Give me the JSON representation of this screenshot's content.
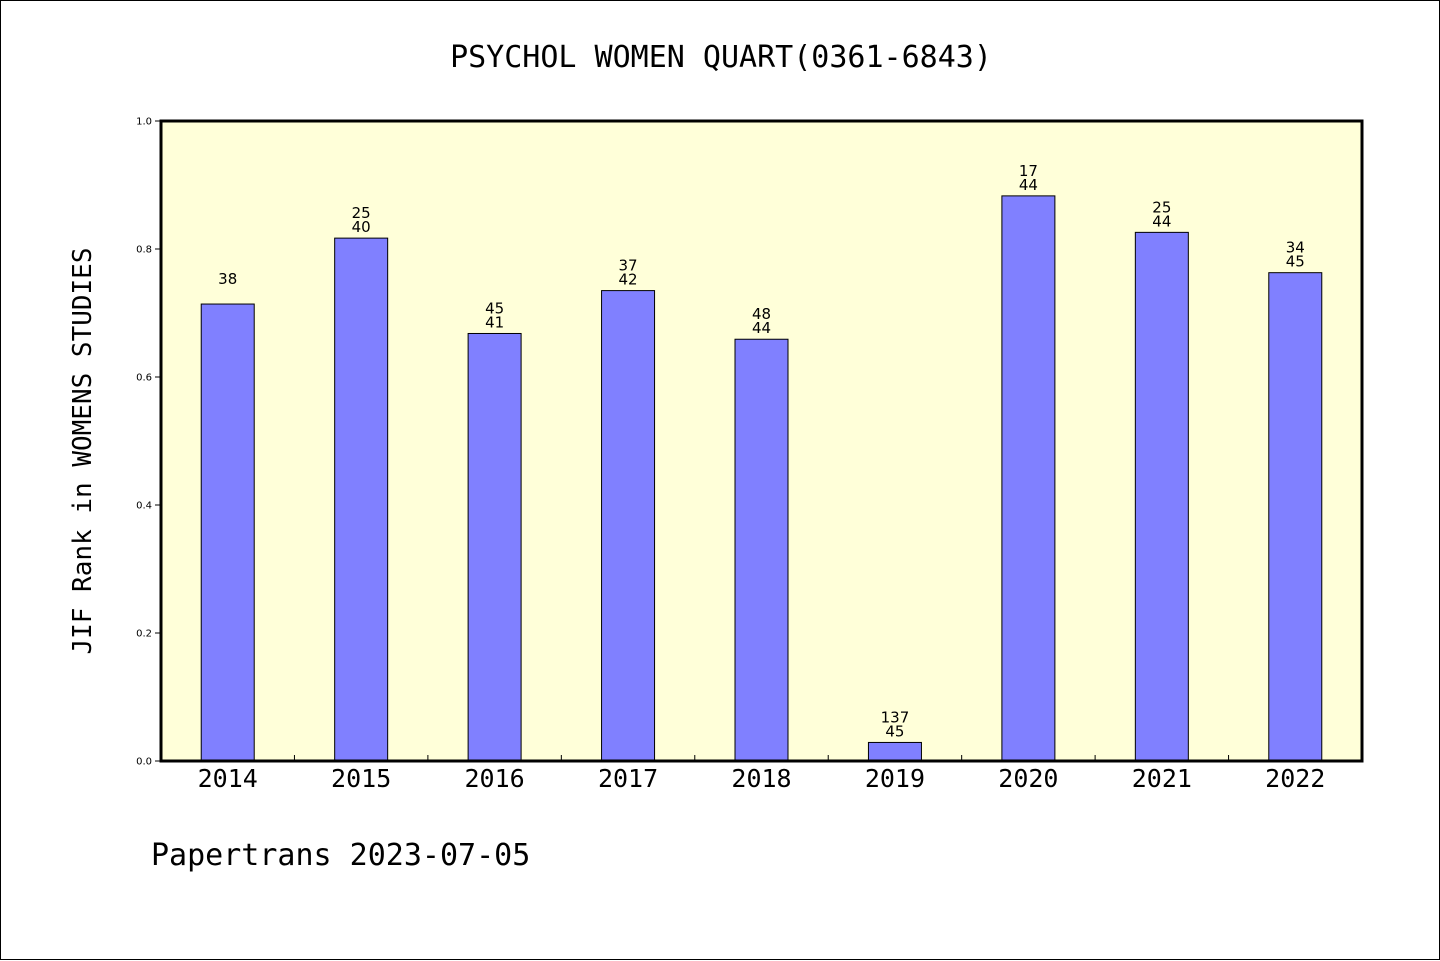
{
  "chart_data": {
    "type": "bar",
    "title": "PSYCHOL WOMEN QUART(0361-6843)",
    "ylabel": "JIF Rank in WOMENS STUDIES",
    "xlabel": "",
    "ylim": [
      0,
      1.0
    ],
    "yticks": [
      "0.0",
      "0.2",
      "0.4",
      "0.6",
      "0.8",
      "1.0"
    ],
    "categories": [
      "2014",
      "2015",
      "2016",
      "2017",
      "2018",
      "2019",
      "2020",
      "2021",
      "2022"
    ],
    "values": [
      0.714,
      0.817,
      0.668,
      0.735,
      0.659,
      0.029,
      0.883,
      0.826,
      0.763
    ],
    "bar_labels": [
      [
        "",
        "38"
      ],
      [
        "25",
        "40"
      ],
      [
        "45",
        "41"
      ],
      [
        "37",
        "42"
      ],
      [
        "48",
        "44"
      ],
      [
        "137",
        "45"
      ],
      [
        "17",
        "44"
      ],
      [
        "25",
        "44"
      ],
      [
        "34",
        "45"
      ]
    ],
    "grid": false,
    "colors": {
      "bar_fill": "#8080ff",
      "plot_background": "#ffffd9",
      "axis": "#000000"
    }
  },
  "footer": "Papertrans 2023-07-05"
}
